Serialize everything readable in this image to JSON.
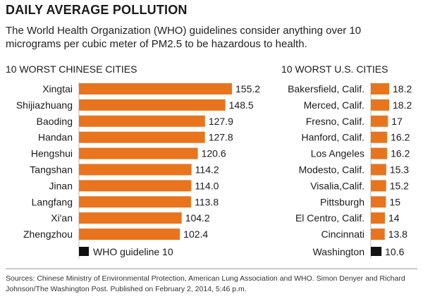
{
  "header": {
    "title": "DAILY AVERAGE POLLUTION",
    "subtitle": "The World Health Organization (WHO) guidelines consider anything over 10 micrograms per cubic meter of PM2.5 to be hazardous to health."
  },
  "footer": {
    "sources": "Sources: Chinese Ministry of Environmental Protection, American Lung Association and WHO. Simon Denyer and Richard Johnson/The Washington Post. Published on February 2, 2014, 5:46 p.m."
  },
  "chart_data": [
    {
      "type": "bar",
      "orientation": "horizontal",
      "title": "10 WORST CHINESE CITIES",
      "categories": [
        "Xingtai",
        "Shijiazhuang",
        "Baoding",
        "Handan",
        "Hengshui",
        "Tangshan",
        "Jinan",
        "Langfang",
        "Xi'an",
        "Zhengzhou"
      ],
      "value_labels": [
        "155.2",
        "148.5",
        "127.9",
        "127.8",
        "120.6",
        "114.2",
        "114.0",
        "113.8",
        "104.2",
        "102.4"
      ],
      "values": [
        155.2,
        148.5,
        127.9,
        127.8,
        120.6,
        114.2,
        114.0,
        113.8,
        104.2,
        102.4
      ],
      "reference": {
        "label": "WHO guideline",
        "value_label": "10",
        "value": 10
      },
      "bar_color": "#e8741e",
      "reference_color": "#111111"
    },
    {
      "type": "bar",
      "orientation": "horizontal",
      "title": "10 WORST U.S. CITIES",
      "categories": [
        "Bakersfield, Calif.",
        "Merced, Calif.",
        "Fresno, Calif.",
        "Hanford, Calif.",
        "Los Angeles",
        "Modesto, Calif.",
        "Visalia,Calif.",
        "Pittsburgh",
        "El Centro, Calif.",
        "Cincinnati"
      ],
      "value_labels": [
        "18.2",
        "18.2",
        "17",
        "16.2",
        "16.2",
        "15.3",
        "15.2",
        "15",
        "14",
        "13.8"
      ],
      "values": [
        18.2,
        18.2,
        17,
        16.2,
        16.2,
        15.3,
        15.2,
        15,
        14,
        13.8
      ],
      "reference": {
        "label": "Washington",
        "value_label": "10.6",
        "value": 10.6
      },
      "bar_color": "#e8741e",
      "reference_color": "#111111"
    }
  ]
}
